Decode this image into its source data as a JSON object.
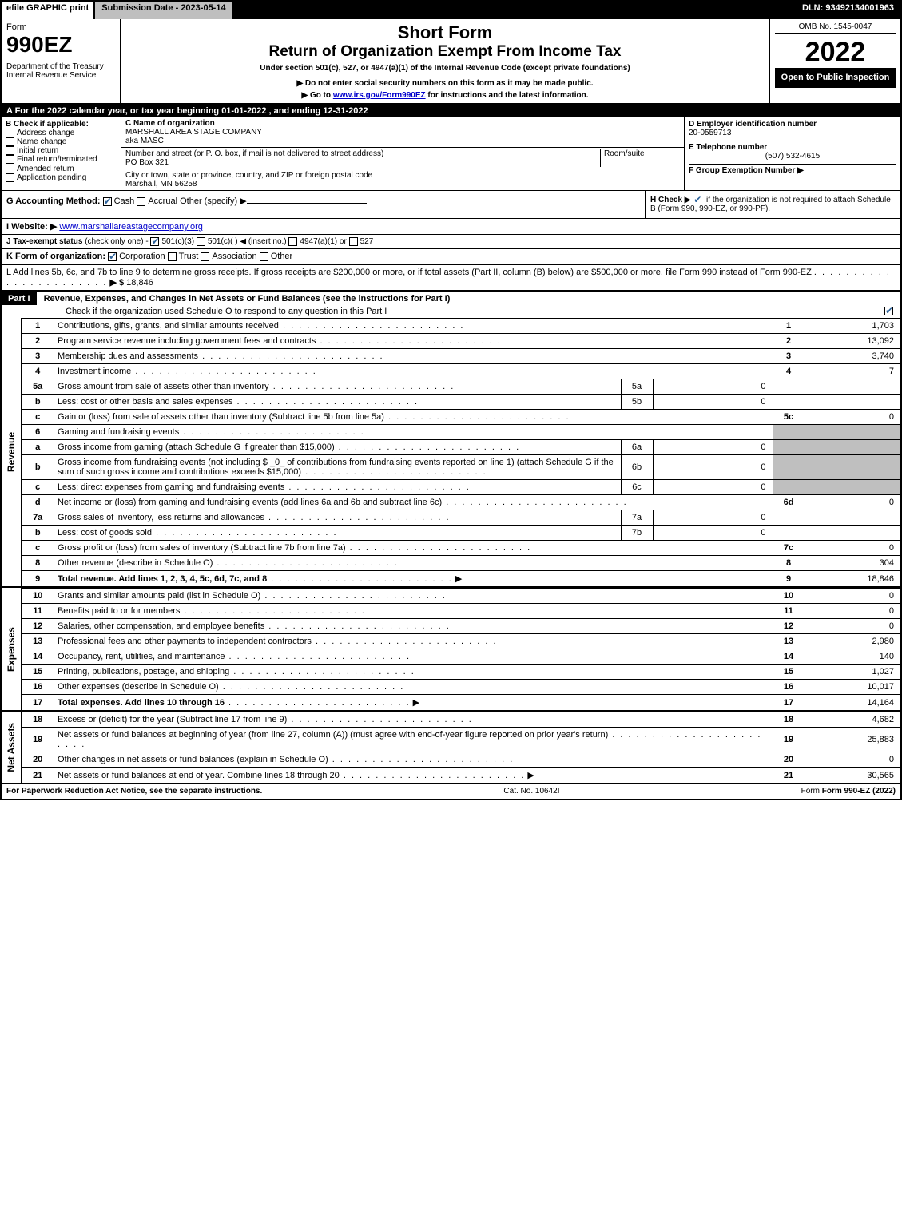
{
  "topbar": {
    "efile": "efile GRAPHIC print",
    "subdate": "Submission Date - 2023-05-14",
    "dln": "DLN: 93492134001963"
  },
  "header": {
    "form_label": "Form",
    "form_num": "990EZ",
    "dept": "Department of the Treasury\nInternal Revenue Service",
    "title1": "Short Form",
    "title2": "Return of Organization Exempt From Income Tax",
    "sub1": "Under section 501(c), 527, or 4947(a)(1) of the Internal Revenue Code (except private foundations)",
    "sub2": "▶ Do not enter social security numbers on this form as it may be made public.",
    "sub3_pre": "▶ Go to ",
    "sub3_link": "www.irs.gov/Form990EZ",
    "sub3_post": " for instructions and the latest information.",
    "omb": "OMB No. 1545-0047",
    "year": "2022",
    "open": "Open to Public Inspection"
  },
  "sectionA": "A  For the 2022 calendar year, or tax year beginning 01-01-2022 , and ending 12-31-2022",
  "B": {
    "label": "B  Check if applicable:",
    "items": [
      "Address change",
      "Name change",
      "Initial return",
      "Final return/terminated",
      "Amended return",
      "Application pending"
    ]
  },
  "C": {
    "label_name": "C Name of organization",
    "org_name": "MARSHALL AREA STAGE COMPANY",
    "aka": "aka MASC",
    "label_addr": "Number and street (or P. O. box, if mail is not delivered to street address)",
    "addr": "PO Box 321",
    "room_label": "Room/suite",
    "label_city": "City or town, state or province, country, and ZIP or foreign postal code",
    "city": "Marshall, MN  56258"
  },
  "D": {
    "label": "D Employer identification number",
    "value": "20-0559713"
  },
  "E": {
    "label": "E Telephone number",
    "value": "(507) 532-4615"
  },
  "F": {
    "label": "F Group Exemption Number  ▶",
    "value": ""
  },
  "G": {
    "label": "G Accounting Method:",
    "cash": "Cash",
    "accrual": "Accrual",
    "other": "Other (specify) ▶"
  },
  "H": {
    "label": "H  Check ▶",
    "text": "if the organization is not required to attach Schedule B (Form 990, 990-EZ, or 990-PF)."
  },
  "I": {
    "label": "I Website: ▶",
    "value": "www.marshallareastagecompany.org"
  },
  "J": {
    "label": "J Tax-exempt status",
    "note": "(check only one) -",
    "opts": [
      "501(c)(3)",
      "501(c)(   ) ◀ (insert no.)",
      "4947(a)(1) or",
      "527"
    ]
  },
  "K": {
    "label": "K Form of organization:",
    "opts": [
      "Corporation",
      "Trust",
      "Association",
      "Other"
    ]
  },
  "L": {
    "text": "L Add lines 5b, 6c, and 7b to line 9 to determine gross receipts. If gross receipts are $200,000 or more, or if total assets (Part II, column (B) below) are $500,000 or more, file Form 990 instead of Form 990-EZ",
    "arrow": "▶ $",
    "value": "18,846"
  },
  "partI": {
    "hdr": "Part I",
    "title": "Revenue, Expenses, and Changes in Net Assets or Fund Balances (see the instructions for Part I)",
    "check_line": "Check if the organization used Schedule O to respond to any question in this Part I"
  },
  "rows": [
    {
      "n": "1",
      "d": "Contributions, gifts, grants, and similar amounts received",
      "b": "1",
      "a": "1,703"
    },
    {
      "n": "2",
      "d": "Program service revenue including government fees and contracts",
      "b": "2",
      "a": "13,092"
    },
    {
      "n": "3",
      "d": "Membership dues and assessments",
      "b": "3",
      "a": "3,740"
    },
    {
      "n": "4",
      "d": "Investment income",
      "b": "4",
      "a": "7"
    },
    {
      "n": "5a",
      "d": "Gross amount from sale of assets other than inventory",
      "mb": "5a",
      "ma": "0"
    },
    {
      "n": "b",
      "d": "Less: cost or other basis and sales expenses",
      "mb": "5b",
      "ma": "0"
    },
    {
      "n": "c",
      "d": "Gain or (loss) from sale of assets other than inventory (Subtract line 5b from line 5a)",
      "b": "5c",
      "a": "0"
    },
    {
      "n": "6",
      "d": "Gaming and fundraising events",
      "grey_right": true
    },
    {
      "n": "a",
      "d": "Gross income from gaming (attach Schedule G if greater than $15,000)",
      "mb": "6a",
      "ma": "0",
      "grey_right": true
    },
    {
      "n": "b",
      "d": "Gross income from fundraising events (not including $ _0_  of contributions from fundraising events reported on line 1) (attach Schedule G if the sum of such gross income and contributions exceeds $15,000)",
      "mb": "6b",
      "ma": "0",
      "grey_right": true
    },
    {
      "n": "c",
      "d": "Less: direct expenses from gaming and fundraising events",
      "mb": "6c",
      "ma": "0",
      "grey_right": true
    },
    {
      "n": "d",
      "d": "Net income or (loss) from gaming and fundraising events (add lines 6a and 6b and subtract line 6c)",
      "b": "6d",
      "a": "0"
    },
    {
      "n": "7a",
      "d": "Gross sales of inventory, less returns and allowances",
      "mb": "7a",
      "ma": "0"
    },
    {
      "n": "b",
      "d": "Less: cost of goods sold",
      "mb": "7b",
      "ma": "0"
    },
    {
      "n": "c",
      "d": "Gross profit or (loss) from sales of inventory (Subtract line 7b from line 7a)",
      "b": "7c",
      "a": "0"
    },
    {
      "n": "8",
      "d": "Other revenue (describe in Schedule O)",
      "b": "8",
      "a": "304"
    },
    {
      "n": "9",
      "d": "Total revenue. Add lines 1, 2, 3, 4, 5c, 6d, 7c, and 8",
      "b": "9",
      "a": "18,846",
      "bold": true,
      "arrow": true
    }
  ],
  "exp_rows": [
    {
      "n": "10",
      "d": "Grants and similar amounts paid (list in Schedule O)",
      "b": "10",
      "a": "0"
    },
    {
      "n": "11",
      "d": "Benefits paid to or for members",
      "b": "11",
      "a": "0"
    },
    {
      "n": "12",
      "d": "Salaries, other compensation, and employee benefits",
      "b": "12",
      "a": "0"
    },
    {
      "n": "13",
      "d": "Professional fees and other payments to independent contractors",
      "b": "13",
      "a": "2,980"
    },
    {
      "n": "14",
      "d": "Occupancy, rent, utilities, and maintenance",
      "b": "14",
      "a": "140"
    },
    {
      "n": "15",
      "d": "Printing, publications, postage, and shipping",
      "b": "15",
      "a": "1,027"
    },
    {
      "n": "16",
      "d": "Other expenses (describe in Schedule O)",
      "b": "16",
      "a": "10,017"
    },
    {
      "n": "17",
      "d": "Total expenses. Add lines 10 through 16",
      "b": "17",
      "a": "14,164",
      "bold": true,
      "arrow": true
    }
  ],
  "na_rows": [
    {
      "n": "18",
      "d": "Excess or (deficit) for the year (Subtract line 17 from line 9)",
      "b": "18",
      "a": "4,682"
    },
    {
      "n": "19",
      "d": "Net assets or fund balances at beginning of year (from line 27, column (A)) (must agree with end-of-year figure reported on prior year's return)",
      "b": "19",
      "a": "25,883"
    },
    {
      "n": "20",
      "d": "Other changes in net assets or fund balances (explain in Schedule O)",
      "b": "20",
      "a": "0"
    },
    {
      "n": "21",
      "d": "Net assets or fund balances at end of year. Combine lines 18 through 20",
      "b": "21",
      "a": "30,565",
      "arrow": true
    }
  ],
  "side_labels": {
    "rev": "Revenue",
    "exp": "Expenses",
    "na": "Net Assets"
  },
  "footer": {
    "left": "For Paperwork Reduction Act Notice, see the separate instructions.",
    "mid": "Cat. No. 10642I",
    "right": "Form 990-EZ (2022)"
  }
}
